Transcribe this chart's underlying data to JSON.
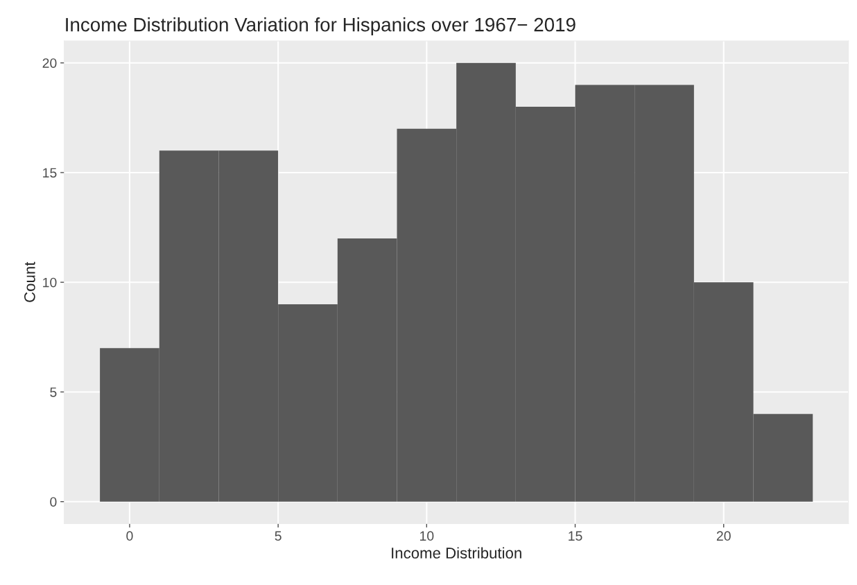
{
  "chart_data": {
    "type": "histogram",
    "title": "Income Distribution Variation for Hispanics over 1967− 2019",
    "xlabel": "Income Distribution",
    "ylabel": "Count",
    "bins": [
      -1,
      1,
      3,
      5,
      7,
      9,
      11,
      13,
      15,
      17,
      19,
      21,
      23
    ],
    "values": [
      7,
      16,
      16,
      9,
      12,
      17,
      20,
      18,
      19,
      19,
      10,
      4
    ],
    "color": "#595959",
    "xlim": [
      -2.2,
      24.2
    ],
    "ylim": [
      -1,
      21
    ],
    "xticks": [
      0,
      5,
      10,
      15,
      20
    ],
    "yticks": [
      0,
      5,
      10,
      15,
      20
    ],
    "grid": true
  }
}
